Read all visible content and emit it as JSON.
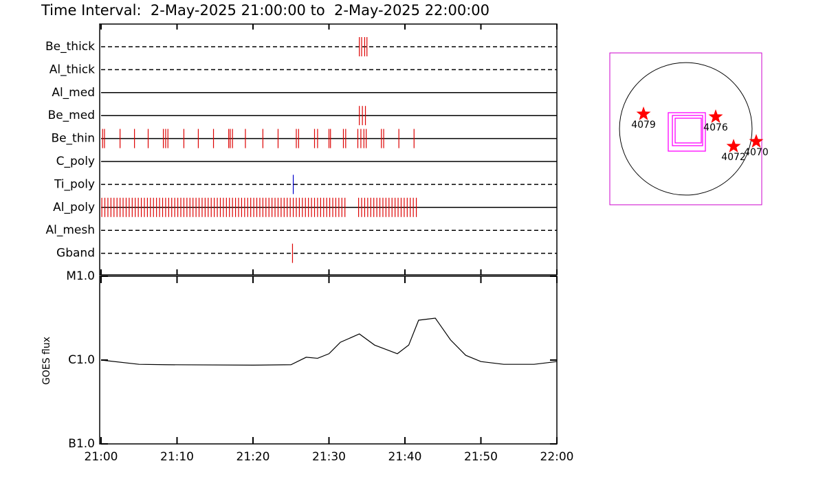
{
  "title": "Time Interval:  2-May-2025 21:00:00 to  2-May-2025 22:00:00",
  "chart_data": [
    {
      "type": "timeline",
      "xlim": [
        0,
        60
      ],
      "xticks": [
        0,
        10,
        20,
        30,
        40,
        50,
        60
      ],
      "series": [
        {
          "name": "Be_thick",
          "color": "#dd0000",
          "line": "dashed",
          "x": [
            34.0,
            34.3,
            34.7,
            35.0
          ]
        },
        {
          "name": "Al_thick",
          "color": "#dd0000",
          "line": "dashed",
          "x": []
        },
        {
          "name": "Al_med",
          "color": "#dd0000",
          "line": "solid",
          "x": []
        },
        {
          "name": "Be_med",
          "color": "#dd0000",
          "line": "solid",
          "x": [
            34.0,
            34.4,
            34.8
          ]
        },
        {
          "name": "Be_thin",
          "color": "#dd0000",
          "line": "solid",
          "x": [
            0.2,
            0.45,
            2.5,
            4.4,
            6.2,
            8.2,
            8.5,
            8.8,
            10.9,
            12.8,
            14.8,
            16.8,
            17.0,
            17.3,
            19.0,
            21.3,
            23.3,
            25.7,
            26.0,
            28.1,
            28.5,
            30.0,
            30.2,
            31.9,
            32.2,
            33.8,
            34.2,
            34.6,
            34.9,
            36.9,
            37.2,
            39.2,
            41.2
          ]
        },
        {
          "name": "C_poly",
          "color": "#dd0000",
          "line": "solid",
          "x": []
        },
        {
          "name": "Ti_poly",
          "color": "#0000cc",
          "line": "dashed",
          "x": [
            25.3
          ]
        },
        {
          "name": "Al_poly",
          "color": "#dd0000",
          "line": "solid",
          "x": [
            0.1,
            0.5,
            0.9,
            1.3,
            1.7,
            2.1,
            2.5,
            2.9,
            3.3,
            3.7,
            4.1,
            4.5,
            4.9,
            5.3,
            5.7,
            6.1,
            6.5,
            6.9,
            7.3,
            7.7,
            8.1,
            8.5,
            8.9,
            9.3,
            9.7,
            10.1,
            10.5,
            10.9,
            11.3,
            11.7,
            12.1,
            12.5,
            12.9,
            13.3,
            13.7,
            14.1,
            14.5,
            14.9,
            15.3,
            15.7,
            16.1,
            16.5,
            16.9,
            17.3,
            17.7,
            18.1,
            18.5,
            18.9,
            19.3,
            19.7,
            20.1,
            20.5,
            20.9,
            21.3,
            21.7,
            22.1,
            22.5,
            22.9,
            23.3,
            23.7,
            24.1,
            24.5,
            24.9,
            25.3,
            25.7,
            26.1,
            26.5,
            26.9,
            27.3,
            27.7,
            28.1,
            28.5,
            28.9,
            29.3,
            29.7,
            30.1,
            30.5,
            30.9,
            31.3,
            31.7,
            32.1,
            33.9,
            34.3,
            34.7,
            35.1,
            35.5,
            35.9,
            36.3,
            36.7,
            37.1,
            37.5,
            37.9,
            38.3,
            38.7,
            39.1,
            39.5,
            39.9,
            40.3,
            40.7,
            41.1,
            41.5
          ]
        },
        {
          "name": "Al_mesh",
          "color": "#dd0000",
          "line": "dashed",
          "x": []
        },
        {
          "name": "Gband",
          "color": "#dd0000",
          "line": "dashed",
          "x": [
            25.2
          ]
        }
      ]
    },
    {
      "type": "line",
      "ylabel": "GOES flux",
      "log_scale": true,
      "color": "#000000",
      "xlim": [
        0,
        60
      ],
      "xticks": [
        {
          "value": 0,
          "label": "21:00"
        },
        {
          "value": 10,
          "label": "21:10"
        },
        {
          "value": 20,
          "label": "21:20"
        },
        {
          "value": 30,
          "label": "21:30"
        },
        {
          "value": 40,
          "label": "21:40"
        },
        {
          "value": 50,
          "label": "21:50"
        },
        {
          "value": 60,
          "label": "22:00"
        }
      ],
      "ylim": [
        1e-07,
        1e-05
      ],
      "yticks": [
        {
          "value": 1e-07,
          "label": "B1.0"
        },
        {
          "value": 1e-06,
          "label": "C1.0"
        },
        {
          "value": 1e-05,
          "label": "M1.0"
        }
      ],
      "x": [
        0,
        5,
        8.5,
        20,
        25,
        27,
        28.5,
        30,
        31.5,
        34,
        36,
        39,
        40.5,
        41.8,
        44,
        46,
        48,
        50,
        53,
        57,
        60
      ],
      "values": [
        1e-06,
        8.9e-07,
        8.8e-07,
        8.7e-07,
        8.8e-07,
        1.08e-06,
        1.05e-06,
        1.19e-06,
        1.63e-06,
        2.05e-06,
        1.51e-06,
        1.19e-06,
        1.51e-06,
        2.99e-06,
        3.16e-06,
        1.74e-06,
        1.14e-06,
        9.6e-07,
        8.9e-07,
        8.9e-07,
        9.6e-07
      ]
    },
    {
      "type": "map",
      "xlim": [
        -1100,
        1100
      ],
      "ylim": [
        -1100,
        1100
      ],
      "disk_radius": 960,
      "frame_color": "#cc00cc",
      "fov_color": "#ff00ff",
      "point_color": "#ff0000",
      "fov": [
        [
          -254,
          234,
          284,
          -323
        ],
        [
          -194,
          194,
          244,
          -244
        ],
        [
          -154,
          154,
          224,
          -204
        ]
      ],
      "points": [
        {
          "label": "4079",
          "x": -612,
          "y": 214
        },
        {
          "label": "4076",
          "x": 433,
          "y": 174
        },
        {
          "label": "4072",
          "x": 692,
          "y": -254
        },
        {
          "label": "4070",
          "x": 1020,
          "y": -184
        }
      ]
    }
  ]
}
